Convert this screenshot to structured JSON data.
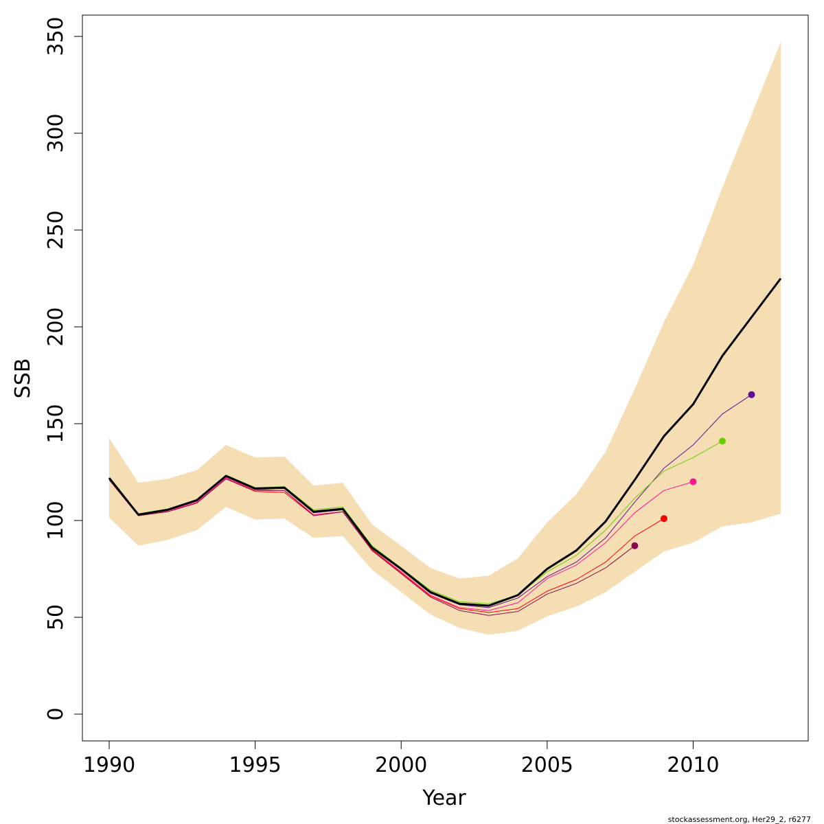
{
  "chart_data": {
    "type": "line",
    "xlabel": "Year",
    "ylabel": "SSB",
    "xlim": [
      1990,
      2013
    ],
    "ylim": [
      0,
      350
    ],
    "xticks": [
      1990,
      1995,
      2000,
      2005,
      2010
    ],
    "yticks": [
      0,
      50,
      100,
      150,
      200,
      250,
      300,
      350
    ],
    "footnote": "stockassessment.org, Her29_2, r6277",
    "band": {
      "color": "#F5DEB3",
      "x": [
        1990,
        1991,
        1992,
        1993,
        1994,
        1995,
        1996,
        1997,
        1998,
        1999,
        2000,
        2001,
        2002,
        2003,
        2004,
        2005,
        2006,
        2007,
        2008,
        2009,
        2010,
        2011,
        2012,
        2013
      ],
      "upper": [
        142.5,
        119.5,
        121.5,
        126.0,
        139.0,
        132.5,
        133.0,
        118.0,
        119.5,
        98.0,
        87.0,
        75.5,
        70.0,
        71.5,
        80.5,
        99.0,
        113.5,
        135.5,
        168.0,
        202.5,
        232.0,
        272.0,
        309.5,
        347.0
      ],
      "lower": [
        101.5,
        87.0,
        90.0,
        95.0,
        107.0,
        100.5,
        101.0,
        91.0,
        92.0,
        74.5,
        63.0,
        51.5,
        44.5,
        41.0,
        43.0,
        50.5,
        55.5,
        63.0,
        73.5,
        84.0,
        88.5,
        97.0,
        99.0,
        103.5
      ]
    },
    "series": [
      {
        "color": "#000000",
        "x": [
          1990,
          1991,
          1992,
          1993,
          1994,
          1995,
          1996,
          1997,
          1998,
          1999,
          2000,
          2001,
          2002,
          2003,
          2004,
          2005,
          2006,
          2007,
          2008,
          2009,
          2010,
          2011,
          2012,
          2013
        ],
        "values": [
          122.0,
          103.0,
          105.5,
          110.5,
          123.0,
          116.5,
          117.0,
          104.5,
          106.0,
          86.0,
          75.0,
          63.0,
          57.0,
          56.0,
          61.5,
          75.0,
          84.5,
          99.5,
          121.0,
          143.5,
          160.0,
          185.0,
          205.0,
          225.0
        ]
      },
      {
        "color": "#5F0F8F",
        "x": [
          1990,
          1991,
          1992,
          1993,
          1994,
          1995,
          1996,
          1997,
          1998,
          1999,
          2000,
          2001,
          2002,
          2003,
          2004,
          2005,
          2006,
          2007,
          2008,
          2009,
          2010,
          2011,
          2012
        ],
        "values": [
          121.5,
          103.0,
          105.5,
          110.0,
          122.5,
          116.5,
          116.5,
          104.0,
          105.5,
          86.0,
          74.5,
          62.5,
          56.5,
          55.0,
          60.0,
          71.0,
          78.5,
          91.0,
          109.5,
          127.0,
          139.0,
          155.0,
          165.0
        ]
      },
      {
        "color": "#66CC00",
        "x": [
          1990,
          1991,
          1992,
          1993,
          1994,
          1995,
          1996,
          1997,
          1998,
          1999,
          2000,
          2001,
          2002,
          2003,
          2004,
          2005,
          2006,
          2007,
          2008,
          2009,
          2010,
          2011
        ],
        "values": [
          122.0,
          103.5,
          106.0,
          110.5,
          123.5,
          117.0,
          117.5,
          105.5,
          107.0,
          87.0,
          75.5,
          64.0,
          58.0,
          57.0,
          61.5,
          73.5,
          82.0,
          95.0,
          111.5,
          125.5,
          132.5,
          141.0
        ]
      },
      {
        "color": "#FF1493",
        "x": [
          1990,
          1991,
          1992,
          1993,
          1994,
          1995,
          1996,
          1997,
          1998,
          1999,
          2000,
          2001,
          2002,
          2003,
          2004,
          2005,
          2006,
          2007,
          2008,
          2009,
          2010
        ],
        "values": [
          121.5,
          103.0,
          105.0,
          109.5,
          122.0,
          116.0,
          115.5,
          103.0,
          104.5,
          85.0,
          73.5,
          61.5,
          55.0,
          53.5,
          57.5,
          70.0,
          77.0,
          88.5,
          104.0,
          115.5,
          120.0
        ]
      },
      {
        "color": "#FF0000",
        "x": [
          1990,
          1991,
          1992,
          1993,
          1994,
          1995,
          1996,
          1997,
          1998,
          1999,
          2000,
          2001,
          2002,
          2003,
          2004,
          2005,
          2006,
          2007,
          2008,
          2009
        ],
        "values": [
          121.0,
          102.5,
          104.5,
          109.0,
          121.5,
          115.0,
          114.5,
          102.5,
          104.5,
          85.0,
          73.0,
          61.0,
          54.5,
          52.5,
          54.5,
          63.5,
          69.5,
          78.5,
          92.0,
          101.0
        ]
      },
      {
        "color": "#8B0A50",
        "x": [
          1990,
          1991,
          1992,
          1993,
          1994,
          1995,
          1996,
          1997,
          1998,
          1999,
          2000,
          2001,
          2002,
          2003,
          2004,
          2005,
          2006,
          2007,
          2008
        ],
        "values": [
          121.0,
          102.5,
          104.5,
          109.0,
          121.5,
          115.5,
          115.5,
          102.5,
          104.5,
          84.5,
          72.5,
          60.5,
          53.5,
          51.0,
          53.0,
          62.0,
          67.5,
          75.5,
          87.0
        ]
      }
    ]
  }
}
